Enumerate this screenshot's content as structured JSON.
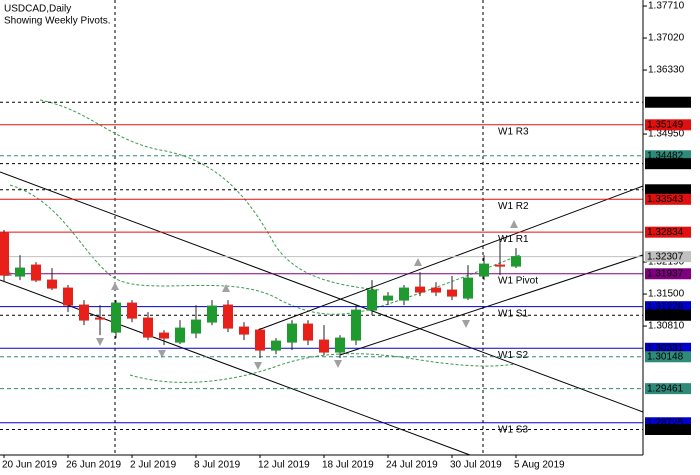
{
  "chart_data": {
    "type": "candlestick",
    "title": "USDCAD,Daily",
    "subtitle": "Showing Weekly Pivots.",
    "categories": [
      "20 Jun 2019",
      null,
      null,
      null,
      "26 Jun 2019",
      null,
      null,
      null,
      "2 Jul 2019",
      null,
      null,
      null,
      "8 Jul 2019",
      null,
      null,
      null,
      "12 Jul 2019",
      null,
      null,
      null,
      "18 Jul 2019",
      null,
      null,
      null,
      "24 Jul 2019",
      null,
      null,
      null,
      "30 Jul 2019",
      null,
      null,
      null,
      "5 Aug 2019"
    ],
    "open": [
      1.32815,
      1.31888,
      1.32125,
      1.31801,
      1.31629,
      1.31262,
      1.30982,
      1.3068,
      1.31305,
      1.30982,
      1.30659,
      1.30464,
      1.30659,
      1.30896,
      1.31262,
      1.30788,
      1.30723,
      1.30292,
      1.30464,
      1.30853,
      1.30508,
      1.30249,
      1.30508,
      1.31154,
      1.3137,
      1.3137,
      1.3165,
      1.31629,
      1.31586,
      1.31413,
      1.31888,
      1.32125,
      1.32103
    ],
    "high": [
      1.3288,
      1.3234,
      1.32189,
      1.3206,
      1.31694,
      1.3137,
      1.31262,
      1.3137,
      1.3137,
      1.31111,
      1.30723,
      1.30939,
      1.31262,
      1.3137,
      1.3137,
      1.30896,
      1.30766,
      1.30551,
      1.30939,
      1.30939,
      1.30831,
      1.30615,
      1.31262,
      1.31801,
      1.31543,
      1.31694,
      1.31974,
      1.31758,
      1.31888,
      1.32125,
      1.3234,
      1.32664,
      1.32491
    ],
    "low": [
      1.31758,
      1.31801,
      1.31758,
      1.31586,
      1.31111,
      1.30831,
      1.30615,
      1.30551,
      1.30896,
      1.30508,
      1.304,
      1.30421,
      1.30551,
      1.30831,
      1.3068,
      1.30508,
      1.30119,
      1.30206,
      1.30292,
      1.304,
      1.30184,
      1.30119,
      1.304,
      1.31047,
      1.31262,
      1.31262,
      1.31456,
      1.31456,
      1.3137,
      1.3137,
      1.31801,
      1.31909,
      1.3206
    ],
    "close": [
      1.31909,
      1.3206,
      1.31801,
      1.31629,
      1.31262,
      1.30939,
      1.3096,
      1.31305,
      1.30982,
      1.30572,
      1.30551,
      1.30766,
      1.30939,
      1.31241,
      1.30766,
      1.30637,
      1.30292,
      1.30486,
      1.30853,
      1.30508,
      1.30249,
      1.30551,
      1.31154,
      1.31586,
      1.31456,
      1.31629,
      1.31543,
      1.31543,
      1.31456,
      1.31844,
      1.32146,
      1.32103,
      1.32307
    ],
    "up_color": "#1f9a2f",
    "down_color": "#e8201a",
    "ylim": [
      1.2803,
      1.3784
    ],
    "yticks": [
      {
        "value": 1.3771,
        "label": "1.37710"
      },
      {
        "value": 1.3702,
        "label": "1.37020"
      },
      {
        "value": 1.3633,
        "label": "1.36330"
      },
      {
        "value": 1.3495,
        "label": "1.34950"
      },
      {
        "value": 1.3219,
        "label": "1.32190"
      },
      {
        "value": 1.315,
        "label": "1.31500"
      },
      {
        "value": 1.3081,
        "label": "1.30810"
      }
    ],
    "levels": [
      {
        "value": 1.35636,
        "color": "#000000",
        "line": "dot"
      },
      {
        "value": 1.35149,
        "color": "#e01010",
        "line": "solid",
        "name": "W1  R3"
      },
      {
        "value": 1.34482,
        "color": "#2e8b7a",
        "line": "dash"
      },
      {
        "value": 1.34311,
        "color": "#000000",
        "line": "dot"
      },
      {
        "value": 1.33748,
        "color": "#000000",
        "line": "dot"
      },
      {
        "value": 1.33543,
        "color": "#e01010",
        "line": "solid",
        "name": "W1  R2"
      },
      {
        "value": 1.32834,
        "color": "#e01010",
        "line": "solid",
        "name": "W1  R1"
      },
      {
        "value": 1.32307,
        "color": "#c0c0c0",
        "line": "solid",
        "text_color": "#000000"
      },
      {
        "value": 1.31937,
        "color": "#800080",
        "line": "solid",
        "name": "W1  Pivot"
      },
      {
        "value": 1.31228,
        "color": "#0000cd",
        "line": "solid",
        "name": "W1  S1"
      },
      {
        "value": 1.31043,
        "color": "#000000",
        "line": "dot"
      },
      {
        "value": 1.30331,
        "color": "#0000cd",
        "line": "solid",
        "name": "W1  S2"
      },
      {
        "value": 1.30148,
        "color": "#2e8b7a",
        "line": "dash"
      },
      {
        "value": 1.29461,
        "color": "#2e8b7a",
        "line": "dash"
      },
      {
        "value": 1.28725,
        "color": "#0000cd",
        "line": "solid",
        "name": "W1  S3"
      },
      {
        "value": 1.2858,
        "label": "1.28580",
        "color": "#000000",
        "line": "dot"
      }
    ]
  }
}
